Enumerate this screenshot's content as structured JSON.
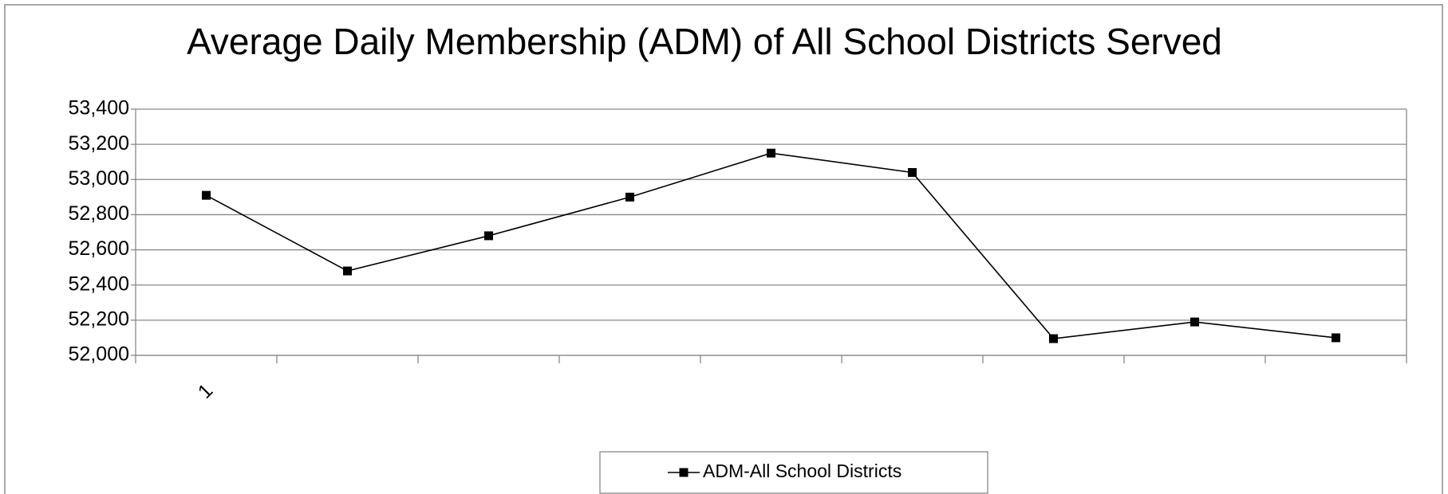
{
  "chart_data": {
    "type": "line",
    "title": "Average Daily Membership (ADM) of All School Districts Served",
    "categories": [
      "1",
      null,
      null,
      null,
      null,
      null,
      null,
      null,
      null
    ],
    "series": [
      {
        "name": "ADM-All School Districts",
        "color": "#000000",
        "values": [
          52910,
          52480,
          52680,
          52900,
          53150,
          53040,
          52095,
          52190,
          52100
        ]
      }
    ],
    "ylim": [
      52000,
      53400
    ],
    "yticks": [
      {
        "value": 52000,
        "label": "52,000"
      },
      {
        "value": 52200,
        "label": "52,200"
      },
      {
        "value": 52400,
        "label": "52,400"
      },
      {
        "value": 52600,
        "label": "52,600"
      },
      {
        "value": 52800,
        "label": "52,800"
      },
      {
        "value": 53000,
        "label": "53,000"
      },
      {
        "value": 53200,
        "label": "53,200"
      },
      {
        "value": 53400,
        "label": "53,400"
      }
    ],
    "grid": true,
    "legend": "bottom"
  }
}
